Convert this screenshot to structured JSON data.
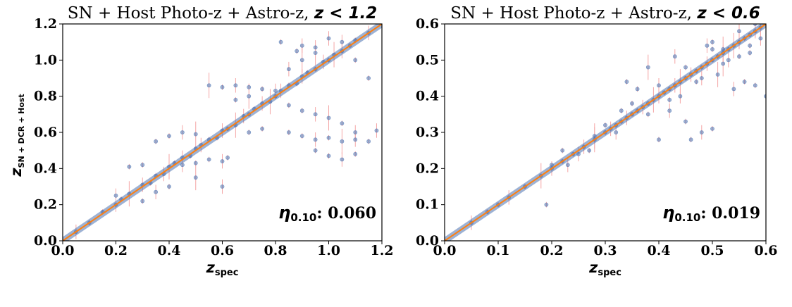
{
  "chart_data": [
    {
      "type": "scatter",
      "title_prefix": "SN + Host Photo-z + Astro-z, ",
      "title_condition": "z < 1.2",
      "xlabel_main": "z",
      "xlabel_sub": "spec",
      "ylabel_main": "z",
      "ylabel_sub": "SN + DCR + Host",
      "xlim": [
        0.0,
        1.2
      ],
      "ylim": [
        0.0,
        1.2
      ],
      "xticks": [
        "0.0",
        "0.2",
        "0.4",
        "0.6",
        "0.8",
        "1.0",
        "1.2"
      ],
      "yticks": [
        "0.0",
        "0.2",
        "0.4",
        "0.6",
        "0.8",
        "1.0",
        "1.2"
      ],
      "annotation_symbol": "η",
      "annotation_sub": "0.10",
      "annotation_value": ": 0.060",
      "reference_line": {
        "x": [
          0.0,
          1.2
        ],
        "y": [
          0.0,
          1.2
        ]
      },
      "series": [
        {
          "points": [
            [
              0.05,
              0.05
            ],
            [
              0.1,
              0.1
            ],
            [
              0.15,
              0.16
            ],
            [
              0.2,
              0.2
            ],
            [
              0.22,
              0.23
            ],
            [
              0.25,
              0.26
            ],
            [
              0.3,
              0.31
            ],
            [
              0.33,
              0.32
            ],
            [
              0.35,
              0.36
            ],
            [
              0.38,
              0.37
            ],
            [
              0.4,
              0.41
            ],
            [
              0.42,
              0.43
            ],
            [
              0.45,
              0.46
            ],
            [
              0.48,
              0.47
            ],
            [
              0.5,
              0.51
            ],
            [
              0.52,
              0.53
            ],
            [
              0.55,
              0.56
            ],
            [
              0.58,
              0.57
            ],
            [
              0.6,
              0.61
            ],
            [
              0.62,
              0.62
            ],
            [
              0.65,
              0.64
            ],
            [
              0.68,
              0.69
            ],
            [
              0.7,
              0.7
            ],
            [
              0.72,
              0.73
            ],
            [
              0.75,
              0.76
            ],
            [
              0.78,
              0.77
            ],
            [
              0.8,
              0.8
            ],
            [
              0.82,
              0.83
            ],
            [
              0.85,
              0.86
            ],
            [
              0.88,
              0.87
            ],
            [
              0.9,
              0.91
            ],
            [
              0.92,
              0.93
            ],
            [
              0.95,
              0.95
            ],
            [
              0.98,
              0.99
            ],
            [
              1.0,
              1.0
            ],
            [
              1.02,
              1.03
            ],
            [
              1.05,
              1.05
            ],
            [
              1.08,
              1.08
            ],
            [
              1.1,
              1.11
            ],
            [
              1.15,
              1.15
            ],
            [
              0.55,
              0.86
            ],
            [
              0.6,
              0.85
            ],
            [
              0.65,
              0.86
            ],
            [
              0.7,
              0.85
            ],
            [
              0.75,
              0.84
            ],
            [
              0.8,
              0.83
            ],
            [
              0.85,
              0.6
            ],
            [
              0.9,
              0.58
            ],
            [
              0.95,
              0.56
            ],
            [
              1.0,
              0.57
            ],
            [
              1.05,
              0.55
            ],
            [
              1.1,
              0.56
            ],
            [
              1.15,
              0.55
            ],
            [
              0.4,
              0.58
            ],
            [
              0.45,
              0.6
            ],
            [
              0.5,
              0.59
            ],
            [
              0.35,
              0.55
            ],
            [
              0.45,
              0.42
            ],
            [
              0.5,
              0.43
            ],
            [
              0.55,
              0.45
            ],
            [
              0.6,
              0.44
            ],
            [
              0.62,
              0.46
            ],
            [
              0.82,
              1.1
            ],
            [
              0.9,
              1.08
            ],
            [
              0.88,
              1.05
            ],
            [
              0.95,
              1.04
            ],
            [
              1.05,
              1.1
            ],
            [
              0.85,
              0.75
            ],
            [
              0.9,
              0.72
            ],
            [
              0.95,
              0.7
            ],
            [
              1.0,
              0.68
            ],
            [
              1.05,
              0.65
            ],
            [
              1.1,
              0.6
            ],
            [
              0.95,
              0.5
            ],
            [
              1.0,
              0.47
            ],
            [
              1.05,
              0.45
            ],
            [
              1.1,
              0.48
            ],
            [
              0.3,
              0.22
            ],
            [
              0.35,
              0.27
            ],
            [
              0.4,
              0.3
            ],
            [
              0.5,
              0.35
            ],
            [
              0.6,
              0.3
            ],
            [
              0.7,
              0.6
            ],
            [
              0.75,
              0.62
            ],
            [
              0.85,
              0.95
            ],
            [
              0.9,
              1.0
            ],
            [
              0.95,
              1.07
            ],
            [
              1.0,
              1.12
            ],
            [
              1.1,
              1.0
            ],
            [
              1.15,
              0.9
            ],
            [
              1.18,
              0.61
            ],
            [
              0.25,
              0.41
            ],
            [
              0.3,
              0.42
            ],
            [
              0.2,
              0.25
            ],
            [
              0.65,
              0.78
            ],
            [
              0.7,
              0.8
            ]
          ]
        }
      ]
    },
    {
      "type": "scatter",
      "title_prefix": "SN + Host Photo-z + Astro-z, ",
      "title_condition": "z < 0.6",
      "xlabel_main": "z",
      "xlabel_sub": "spec",
      "ylabel_main": "",
      "ylabel_sub": "",
      "xlim": [
        0.0,
        0.6
      ],
      "ylim": [
        0.0,
        0.6
      ],
      "xticks": [
        "0.0",
        "0.1",
        "0.2",
        "0.3",
        "0.4",
        "0.5",
        "0.6"
      ],
      "yticks": [
        "0.0",
        "0.1",
        "0.2",
        "0.3",
        "0.4",
        "0.5",
        "0.6"
      ],
      "annotation_symbol": "η",
      "annotation_sub": "0.10",
      "annotation_value": ": 0.019",
      "reference_line": {
        "x": [
          0.0,
          0.6
        ],
        "y": [
          0.0,
          0.6
        ]
      },
      "series": [
        {
          "points": [
            [
              0.05,
              0.05
            ],
            [
              0.08,
              0.08
            ],
            [
              0.1,
              0.1
            ],
            [
              0.12,
              0.12
            ],
            [
              0.15,
              0.15
            ],
            [
              0.18,
              0.18
            ],
            [
              0.2,
              0.2
            ],
            [
              0.22,
              0.22
            ],
            [
              0.24,
              0.24
            ],
            [
              0.26,
              0.26
            ],
            [
              0.28,
              0.28
            ],
            [
              0.3,
              0.3
            ],
            [
              0.31,
              0.31
            ],
            [
              0.32,
              0.32
            ],
            [
              0.33,
              0.33
            ],
            [
              0.34,
              0.34
            ],
            [
              0.35,
              0.35
            ],
            [
              0.36,
              0.36
            ],
            [
              0.37,
              0.37
            ],
            [
              0.38,
              0.38
            ],
            [
              0.39,
              0.39
            ],
            [
              0.4,
              0.4
            ],
            [
              0.41,
              0.41
            ],
            [
              0.42,
              0.42
            ],
            [
              0.43,
              0.43
            ],
            [
              0.44,
              0.44
            ],
            [
              0.45,
              0.45
            ],
            [
              0.46,
              0.46
            ],
            [
              0.47,
              0.47
            ],
            [
              0.48,
              0.48
            ],
            [
              0.49,
              0.49
            ],
            [
              0.5,
              0.5
            ],
            [
              0.51,
              0.51
            ],
            [
              0.52,
              0.52
            ],
            [
              0.53,
              0.53
            ],
            [
              0.54,
              0.54
            ],
            [
              0.55,
              0.55
            ],
            [
              0.56,
              0.56
            ],
            [
              0.57,
              0.57
            ],
            [
              0.58,
              0.58
            ],
            [
              0.59,
              0.59
            ],
            [
              0.3,
              0.32
            ],
            [
              0.32,
              0.3
            ],
            [
              0.35,
              0.38
            ],
            [
              0.38,
              0.35
            ],
            [
              0.4,
              0.43
            ],
            [
              0.42,
              0.39
            ],
            [
              0.45,
              0.48
            ],
            [
              0.48,
              0.45
            ],
            [
              0.5,
              0.53
            ],
            [
              0.52,
              0.49
            ],
            [
              0.55,
              0.58
            ],
            [
              0.57,
              0.54
            ],
            [
              0.2,
              0.21
            ],
            [
              0.25,
              0.24
            ],
            [
              0.28,
              0.29
            ],
            [
              0.34,
              0.44
            ],
            [
              0.42,
              0.36
            ],
            [
              0.45,
              0.33
            ],
            [
              0.46,
              0.28
            ],
            [
              0.48,
              0.3
            ],
            [
              0.5,
              0.31
            ],
            [
              0.4,
              0.28
            ],
            [
              0.49,
              0.54
            ],
            [
              0.5,
              0.55
            ],
            [
              0.52,
              0.53
            ],
            [
              0.54,
              0.42
            ],
            [
              0.56,
              0.44
            ],
            [
              0.58,
              0.43
            ],
            [
              0.6,
              0.4
            ],
            [
              0.38,
              0.48
            ],
            [
              0.36,
              0.42
            ],
            [
              0.43,
              0.51
            ],
            [
              0.33,
              0.36
            ],
            [
              0.27,
              0.25
            ],
            [
              0.23,
              0.21
            ],
            [
              0.19,
              0.1
            ],
            [
              0.22,
              0.25
            ],
            [
              0.44,
              0.4
            ],
            [
              0.47,
              0.44
            ],
            [
              0.51,
              0.46
            ],
            [
              0.53,
              0.5
            ],
            [
              0.55,
              0.51
            ],
            [
              0.57,
              0.52
            ],
            [
              0.59,
              0.56
            ],
            [
              0.58,
              0.6
            ]
          ]
        }
      ]
    }
  ],
  "colors": {
    "point": "#4c72b0",
    "error_bar": "#f4a6a6",
    "reference_line": "#ff7f0e",
    "axis": "#000000"
  }
}
